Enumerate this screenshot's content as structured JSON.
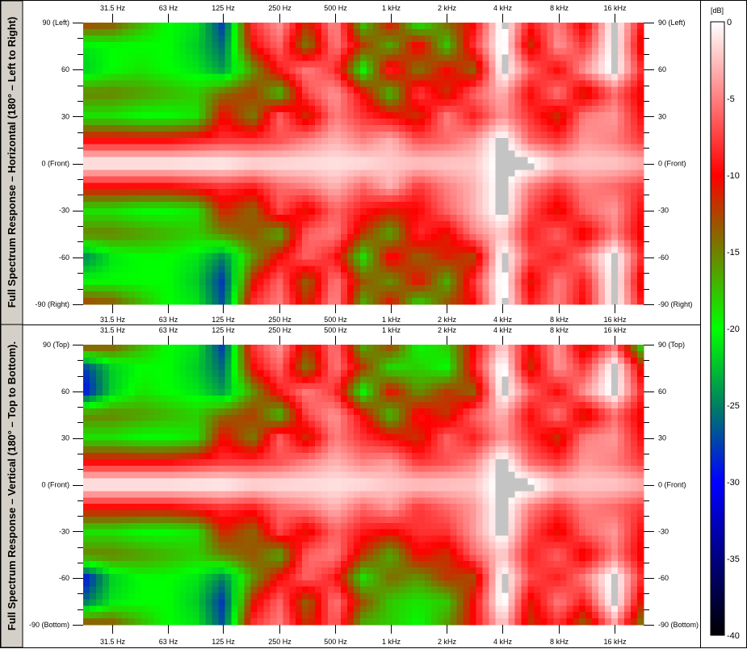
{
  "colorbar": {
    "label": "[dB]",
    "range": [
      -40,
      0
    ],
    "ticks": [
      0,
      -5,
      -10,
      -15,
      -20,
      -25,
      -30,
      -35,
      -40
    ],
    "tick_labels": [
      "0",
      "-5",
      "-10",
      "-15",
      "-20",
      "-25",
      "-30",
      "-35",
      "-40"
    ],
    "stops": [
      {
        "value": 0,
        "color": "#ffffff"
      },
      {
        "value": -10,
        "color": "#ff0000"
      },
      {
        "value": -13,
        "color": "#a05000"
      },
      {
        "value": -15,
        "color": "#708000"
      },
      {
        "value": -20,
        "color": "#00ff00"
      },
      {
        "value": -25,
        "color": "#008060"
      },
      {
        "value": -30,
        "color": "#0000ff"
      },
      {
        "value": -40,
        "color": "#000000"
      }
    ],
    "above_max_color": "#c4c4c4"
  },
  "chart_data": [
    {
      "type": "heatmap",
      "title": "Full Spectrum Response – Horizontal (180° – Left to Right)",
      "x_scale": "log",
      "xlim": [
        22,
        23000
      ],
      "x_ticks": [
        31.5,
        63,
        125,
        250,
        500,
        1000,
        2000,
        4000,
        8000,
        16000
      ],
      "x_tick_labels": [
        "31.5 Hz",
        "63 Hz",
        "125 Hz",
        "250 Hz",
        "500 Hz",
        "1 kHz",
        "2 kHz",
        "4 kHz",
        "8 kHz",
        "16 kHz"
      ],
      "ylim": [
        -90,
        90
      ],
      "y_ticks": [
        90,
        60,
        30,
        0,
        -30,
        -60,
        -90
      ],
      "y_tick_labels": [
        "90 (Left)",
        "60",
        "30",
        "0 (Front)",
        "-30",
        "-60",
        "-90 (Right)"
      ],
      "frequencies": [
        22,
        31.5,
        45,
        63,
        90,
        125,
        180,
        250,
        355,
        500,
        710,
        1000,
        1400,
        2000,
        2800,
        4000,
        5600,
        8000,
        11000,
        16000,
        23000
      ],
      "angles": [
        90,
        75,
        60,
        45,
        30,
        15,
        0,
        -15,
        -30,
        -45,
        -60,
        -75,
        -90
      ],
      "values": [
        [
          -12,
          -13,
          -17,
          -20,
          -21,
          -28,
          -8,
          -4,
          -12,
          -4,
          -18,
          -10,
          -20,
          -14,
          -10,
          1,
          -9,
          -5,
          -11,
          1,
          -10
        ],
        [
          -21,
          -20,
          -20,
          -20,
          -22,
          -26,
          -10,
          -6,
          -15,
          -5,
          -12,
          -17,
          -9,
          -18,
          -8,
          1,
          -12,
          -4,
          -8,
          1,
          -12
        ],
        [
          -22,
          -20,
          -19,
          -20,
          -21,
          -24,
          -16,
          -9,
          -5,
          -8,
          -20,
          -8,
          -15,
          -10,
          -14,
          1,
          -6,
          -10,
          -4,
          1,
          -9
        ],
        [
          -15,
          -15,
          -16,
          -17,
          -18,
          -14,
          -12,
          -18,
          -7,
          -4,
          -10,
          -18,
          -7,
          -12,
          -6,
          -3,
          -10,
          -5,
          -12,
          -6,
          -11
        ],
        [
          -19,
          -19,
          -20,
          -20,
          -19,
          -10,
          -15,
          -6,
          -12,
          -5,
          -8,
          -10,
          -12,
          -5,
          -9,
          -4,
          -8,
          -12,
          -5,
          -4,
          -10
        ],
        [
          -10,
          -10,
          -10,
          -10,
          -9,
          -8,
          -8,
          -7,
          -5,
          -3,
          -5,
          -3,
          -7,
          -6,
          -4,
          1,
          -6,
          -8,
          -4,
          -5,
          -8
        ],
        [
          0,
          0,
          0,
          0,
          0,
          0,
          -1,
          -1,
          -1,
          -1,
          -1,
          -2,
          -2,
          -2,
          -2,
          1,
          1,
          -2,
          -2,
          -2,
          -3
        ],
        [
          -10,
          -10,
          -10,
          -10,
          -9,
          -8,
          -9,
          -6,
          -5,
          -3,
          -6,
          -3,
          -8,
          -5,
          -3,
          1,
          -5,
          -8,
          -5,
          -6,
          -8
        ],
        [
          -19,
          -19,
          -20,
          -20,
          -19,
          -11,
          -14,
          -7,
          -11,
          -6,
          -9,
          -11,
          -10,
          -6,
          -3,
          1,
          -7,
          -11,
          -6,
          -4,
          -10
        ],
        [
          -15,
          -15,
          -16,
          -17,
          -18,
          -15,
          -13,
          -17,
          -6,
          -5,
          -12,
          -17,
          -8,
          -11,
          -5,
          -2,
          -9,
          -6,
          -11,
          -5,
          -11
        ],
        [
          -25,
          -21,
          -20,
          -20,
          -21,
          -25,
          -16,
          -10,
          -6,
          -9,
          -19,
          -9,
          -14,
          -11,
          -13,
          1,
          -7,
          -9,
          -5,
          1,
          -9
        ],
        [
          -20,
          -20,
          -20,
          -20,
          -22,
          -28,
          -11,
          -6,
          -14,
          -5,
          -13,
          -16,
          -10,
          -17,
          -8,
          1,
          -11,
          -5,
          -9,
          1,
          -12
        ],
        [
          -12,
          -13,
          -17,
          -20,
          -21,
          -27,
          -8,
          -5,
          -12,
          -4,
          -17,
          -10,
          -19,
          -13,
          -10,
          1,
          -9,
          -5,
          -10,
          1,
          -10
        ]
      ]
    },
    {
      "type": "heatmap",
      "title": "Full Spectrum Response – Vertical (180° – Top to Bottom).",
      "x_scale": "log",
      "xlim": [
        22,
        23000
      ],
      "x_ticks": [
        31.5,
        63,
        125,
        250,
        500,
        1000,
        2000,
        4000,
        8000,
        16000
      ],
      "x_tick_labels": [
        "31.5 Hz",
        "63 Hz",
        "125 Hz",
        "250 Hz",
        "500 Hz",
        "1 kHz",
        "2 kHz",
        "4 kHz",
        "8 kHz",
        "16 kHz"
      ],
      "ylim": [
        -90,
        90
      ],
      "y_ticks": [
        90,
        60,
        30,
        0,
        -30,
        -60,
        -90
      ],
      "y_tick_labels": [
        "90 (Top)",
        "60",
        "30",
        "0 (Front)",
        "-30",
        "-60",
        "-90 (Bottom)"
      ],
      "frequencies": [
        22,
        31.5,
        45,
        63,
        90,
        125,
        180,
        250,
        355,
        500,
        710,
        1000,
        1400,
        2000,
        2800,
        4000,
        5600,
        8000,
        11000,
        16000,
        23000
      ],
      "angles": [
        90,
        75,
        60,
        45,
        30,
        15,
        0,
        -15,
        -30,
        -45,
        -60,
        -75,
        -90
      ],
      "values": [
        [
          -12,
          -13,
          -17,
          -20,
          -21,
          -28,
          -8,
          -4,
          -12,
          -5,
          -17,
          -12,
          -20,
          -18,
          -10,
          -2,
          -10,
          -4,
          -12,
          -6,
          -20
        ],
        [
          -28,
          -22,
          -20,
          -20,
          -22,
          -26,
          -10,
          -6,
          -15,
          -5,
          -12,
          -19,
          -18,
          -20,
          -9,
          1,
          -12,
          -4,
          -8,
          1,
          -12
        ],
        [
          -30,
          -22,
          -19,
          -20,
          -21,
          -24,
          -16,
          -9,
          -5,
          -8,
          -20,
          -10,
          -16,
          -12,
          -14,
          1,
          -6,
          -10,
          -4,
          1,
          -9
        ],
        [
          -15,
          -15,
          -16,
          -17,
          -18,
          -14,
          -12,
          -18,
          -7,
          -4,
          -10,
          -18,
          -9,
          -12,
          -6,
          -3,
          -10,
          -5,
          -12,
          -6,
          -11
        ],
        [
          -19,
          -19,
          -20,
          -20,
          -19,
          -10,
          -15,
          -6,
          -12,
          -5,
          -8,
          -10,
          -12,
          -6,
          -9,
          -4,
          -8,
          -12,
          -5,
          -4,
          -10
        ],
        [
          -10,
          -10,
          -10,
          -10,
          -9,
          -8,
          -8,
          -7,
          -5,
          -3,
          -5,
          -4,
          -8,
          -7,
          -5,
          1,
          -6,
          -8,
          -4,
          -5,
          -8
        ],
        [
          0,
          0,
          0,
          0,
          0,
          0,
          -1,
          -1,
          -1,
          -1,
          -1,
          -2,
          -2,
          -2,
          -2,
          1,
          1,
          -2,
          -2,
          -2,
          -3
        ],
        [
          -10,
          -10,
          -10,
          -10,
          -9,
          -8,
          -9,
          -6,
          -5,
          -3,
          -6,
          -4,
          -8,
          -6,
          -4,
          1,
          -5,
          -8,
          -5,
          -6,
          -8
        ],
        [
          -19,
          -19,
          -20,
          -20,
          -19,
          -11,
          -14,
          -7,
          -11,
          -6,
          -9,
          -10,
          -8,
          -8,
          -4,
          1,
          -7,
          -11,
          -6,
          -4,
          -10
        ],
        [
          -15,
          -15,
          -16,
          -17,
          -18,
          -15,
          -13,
          -17,
          -6,
          -5,
          -12,
          -17,
          -10,
          -12,
          -6,
          -2,
          -9,
          -6,
          -11,
          -5,
          -11
        ],
        [
          -30,
          -22,
          -20,
          -20,
          -21,
          -25,
          -16,
          -10,
          -6,
          -9,
          -19,
          -14,
          -16,
          -12,
          -13,
          1,
          -7,
          -9,
          -5,
          1,
          -9
        ],
        [
          -26,
          -21,
          -20,
          -20,
          -22,
          -28,
          -11,
          -6,
          -14,
          -5,
          -13,
          -18,
          -19,
          -18,
          -10,
          1,
          -11,
          -5,
          -9,
          1,
          -12
        ],
        [
          -12,
          -13,
          -17,
          -20,
          -21,
          -27,
          -8,
          -5,
          -12,
          -6,
          -17,
          -18,
          -20,
          -16,
          -10,
          -2,
          -12,
          -8,
          -14,
          -4,
          -16
        ]
      ]
    }
  ]
}
